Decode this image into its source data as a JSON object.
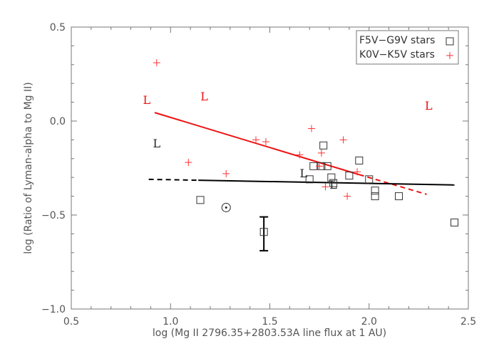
{
  "chart_data": {
    "type": "scatter",
    "title": "",
    "xlabel": "log (Mg II 2796.35+2803.53A line flux at 1 AU)",
    "ylabel": "log (Ratio of Lyman-alpha to Mg II)",
    "xlim": [
      0.5,
      2.5
    ],
    "ylim": [
      -1.0,
      0.5
    ],
    "xticks": [
      0.5,
      1.0,
      1.5,
      2.0,
      2.5
    ],
    "xtick_labels": [
      "0.5",
      "1.0",
      "1.5",
      "2.0",
      "2.5"
    ],
    "yticks": [
      -1.0,
      -0.5,
      0.0,
      0.5
    ],
    "ytick_labels": [
      "−1.0",
      "−0.5",
      "0.0",
      "0.5"
    ],
    "grid": false,
    "legend_position": "top-right",
    "colors": {
      "f_series": "#333333",
      "k_series": "#ff3030",
      "k_fit": "#ee1111",
      "f_fit": "#000000"
    },
    "series": [
      {
        "name": "F5V−G9V stars",
        "marker": "square",
        "color": "#333333",
        "x": [
          1.15,
          1.47,
          1.7,
          1.72,
          1.76,
          1.77,
          1.79,
          1.81,
          1.82,
          1.9,
          1.95,
          2.0,
          2.03,
          2.03,
          2.15,
          2.43
        ],
        "y": [
          -0.42,
          -0.59,
          -0.31,
          -0.24,
          -0.24,
          -0.13,
          -0.24,
          -0.3,
          -0.33,
          -0.29,
          -0.21,
          -0.31,
          -0.37,
          -0.4,
          -0.4,
          -0.54
        ]
      },
      {
        "name": "K0V−K5V stars",
        "marker": "plus",
        "color": "#ff3030",
        "x": [
          0.93,
          1.09,
          1.28,
          1.43,
          1.48,
          1.65,
          1.71,
          1.75,
          1.76,
          1.78,
          1.87,
          1.89,
          1.94
        ],
        "y": [
          0.31,
          -0.22,
          -0.28,
          -0.1,
          -0.11,
          -0.18,
          -0.04,
          -0.24,
          -0.17,
          -0.35,
          -0.1,
          -0.4,
          -0.27
        ]
      }
    ],
    "fits": [
      {
        "color": "#ee1111",
        "solid": [
          [
            0.92,
            0.045
          ],
          [
            1.95,
            -0.285
          ]
        ],
        "dashed": [
          [
            1.95,
            -0.285
          ],
          [
            2.29,
            -0.39
          ]
        ]
      },
      {
        "color": "#000000",
        "solid": [
          [
            1.14,
            -0.315
          ],
          [
            2.43,
            -0.34
          ]
        ],
        "dashed": [
          [
            0.89,
            -0.31
          ],
          [
            1.14,
            -0.315
          ]
        ]
      }
    ],
    "annotations": [
      {
        "text": "L",
        "x": 0.88,
        "y": 0.09,
        "color": "#ee1111"
      },
      {
        "text": "L",
        "x": 1.17,
        "y": 0.11,
        "color": "#ee1111"
      },
      {
        "text": "L",
        "x": 2.3,
        "y": 0.06,
        "color": "#ee1111"
      },
      {
        "text": "L",
        "x": 0.93,
        "y": -0.14,
        "color": "#222222"
      },
      {
        "text": "L",
        "x": 1.67,
        "y": -0.3,
        "color": "#222222"
      },
      {
        "text": "L",
        "x": 1.82,
        "y": -0.36,
        "color": "#222222"
      }
    ],
    "sun": {
      "x": 1.28,
      "y": -0.46
    },
    "error_bar": {
      "x": 1.47,
      "y_low": -0.69,
      "y_high": -0.51
    }
  }
}
